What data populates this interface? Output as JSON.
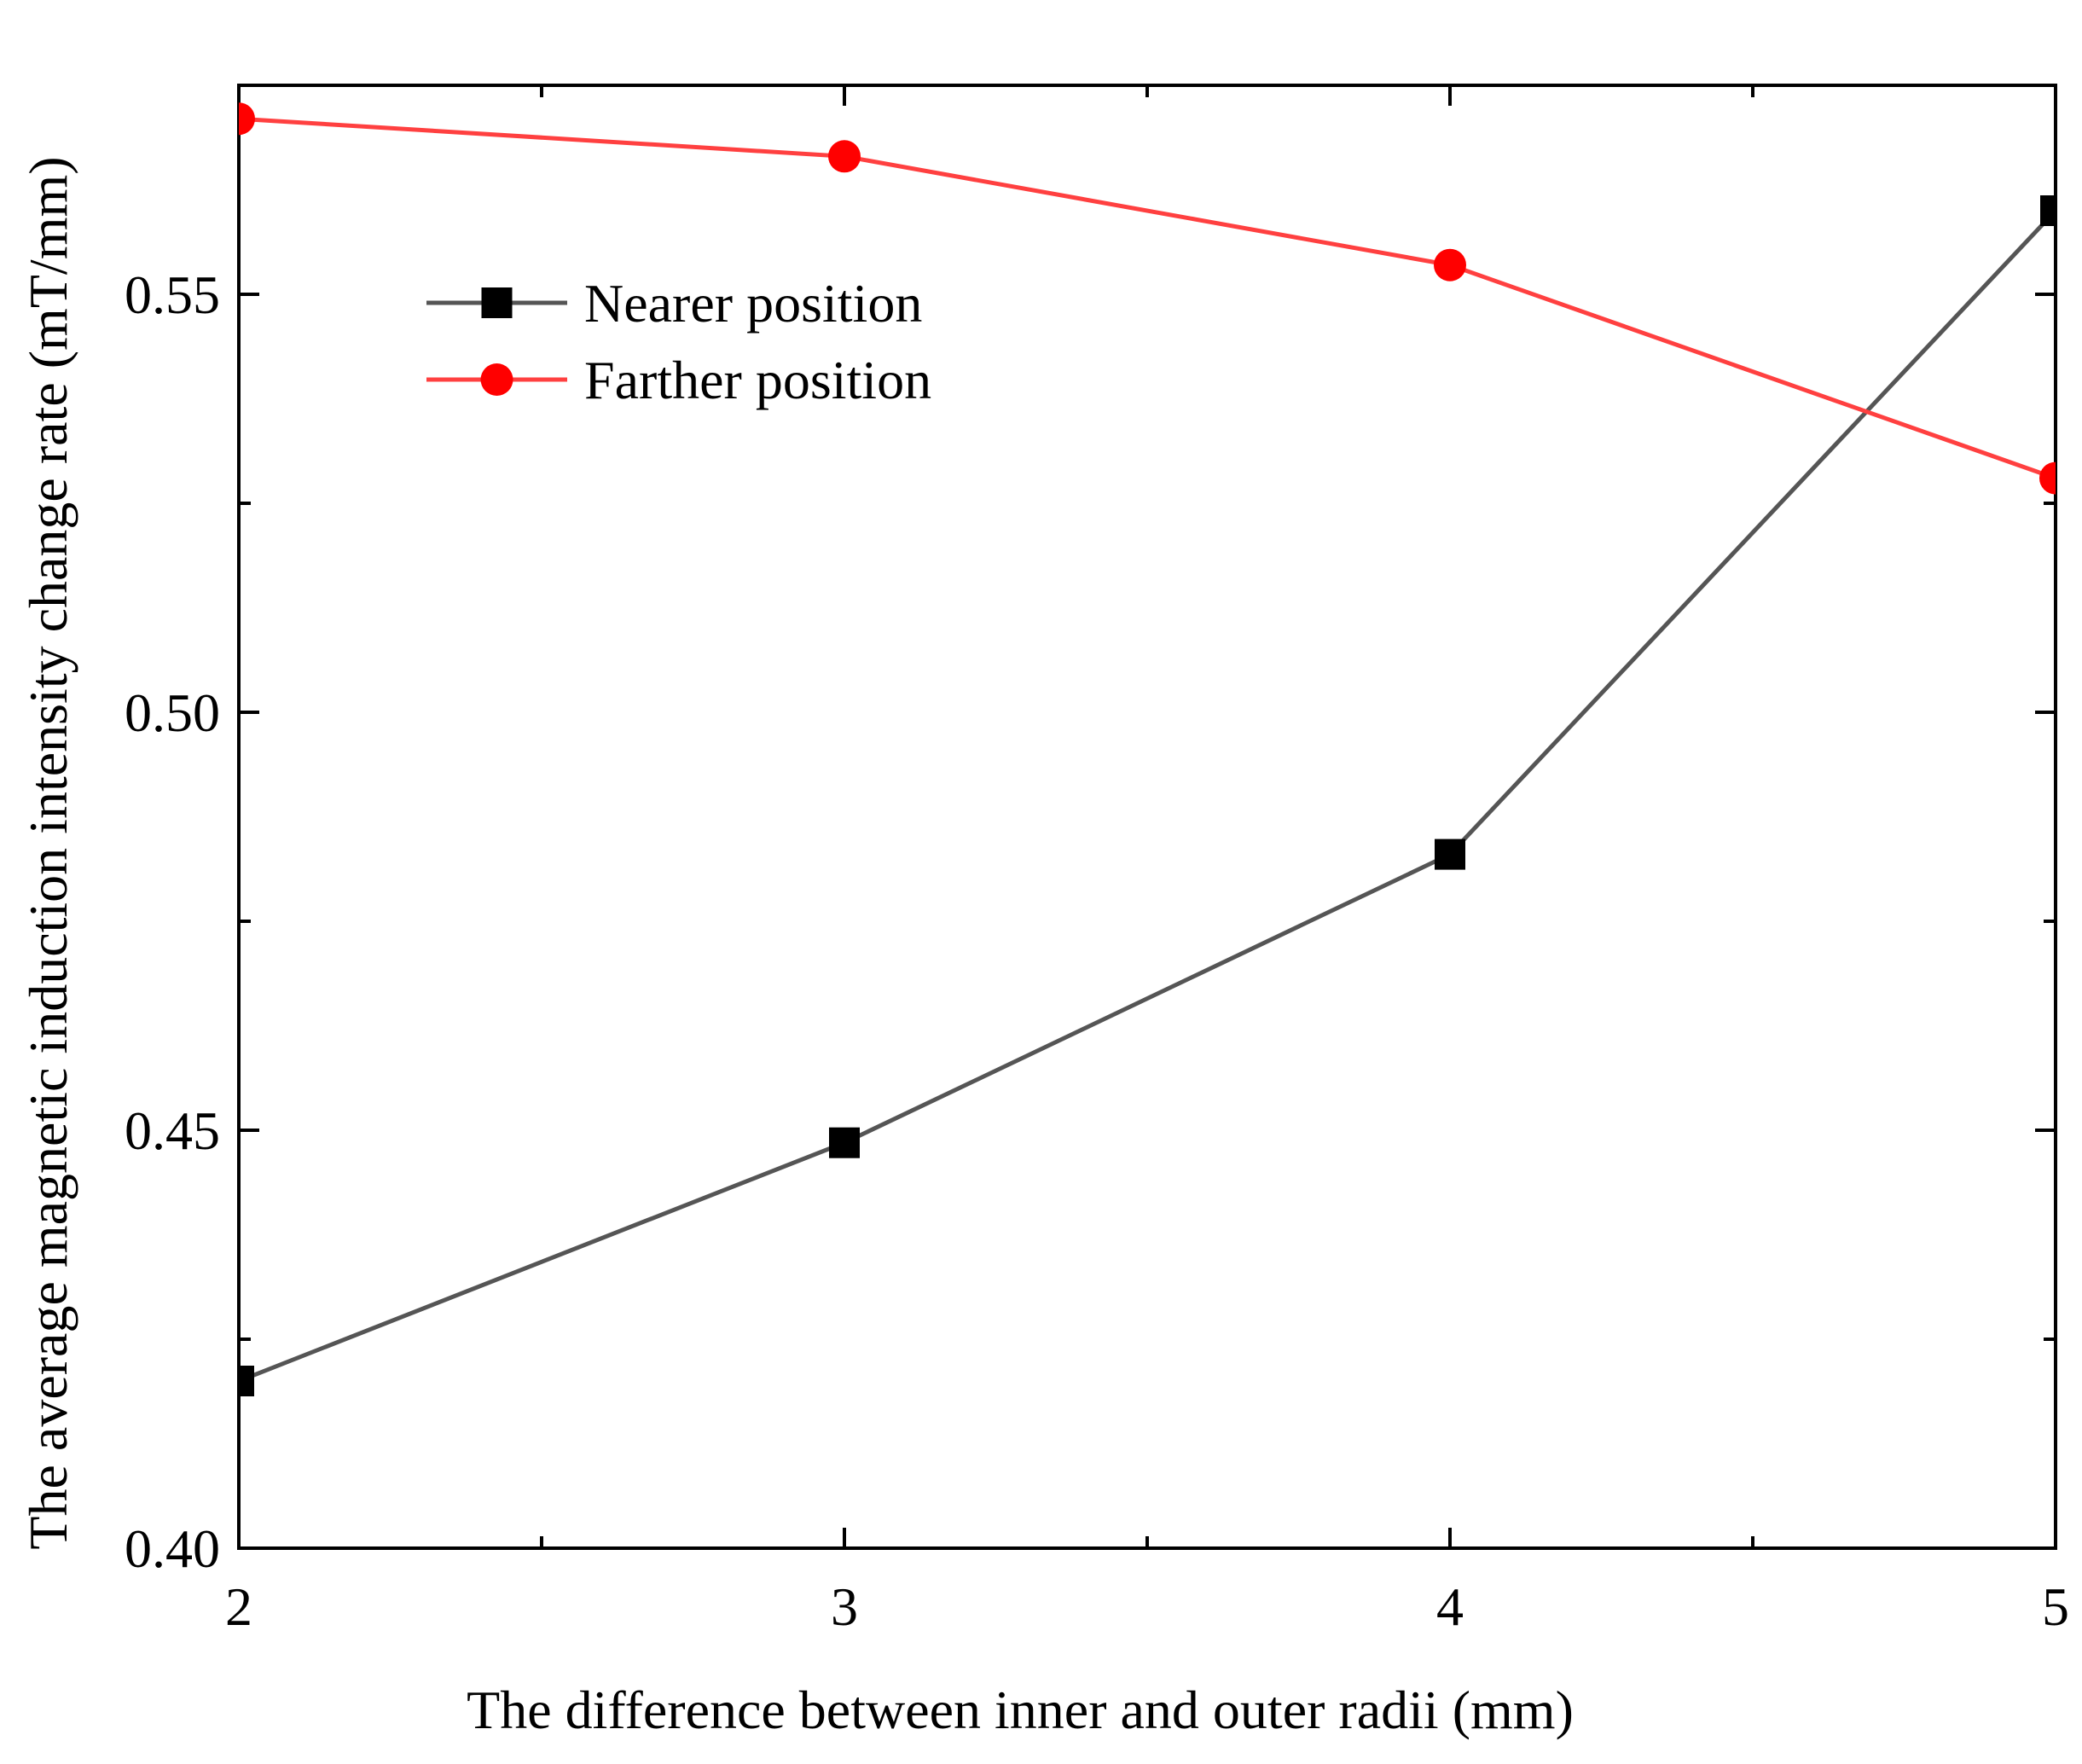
{
  "chart_data": {
    "type": "line",
    "title": "",
    "xlabel": "The difference between inner and outer radii (mm)",
    "ylabel": "The average magnetic induction intensity change rate (mT/mm)",
    "xlim": [
      2,
      5
    ],
    "ylim": [
      0.4,
      0.575
    ],
    "xticks": [
      2,
      3,
      4,
      5
    ],
    "xtick_labels": [
      "2",
      "3",
      "4",
      "5"
    ],
    "yticks": [
      0.4,
      0.45,
      0.5,
      0.55
    ],
    "ytick_labels": [
      "0.40",
      "0.45",
      "0.50",
      "0.55"
    ],
    "grid": false,
    "legend_position": "top-left",
    "x": [
      2,
      3,
      4,
      5
    ],
    "series": [
      {
        "name": "Nearer position",
        "values": [
          0.42,
          0.4485,
          0.483,
          0.56
        ],
        "color": "#555555",
        "marker_color": "#000000",
        "marker": "square"
      },
      {
        "name": "Farther position",
        "values": [
          0.571,
          0.5665,
          0.5535,
          0.528
        ],
        "color": "#ff4040",
        "marker_color": "#ff0000",
        "marker": "circle"
      }
    ]
  }
}
